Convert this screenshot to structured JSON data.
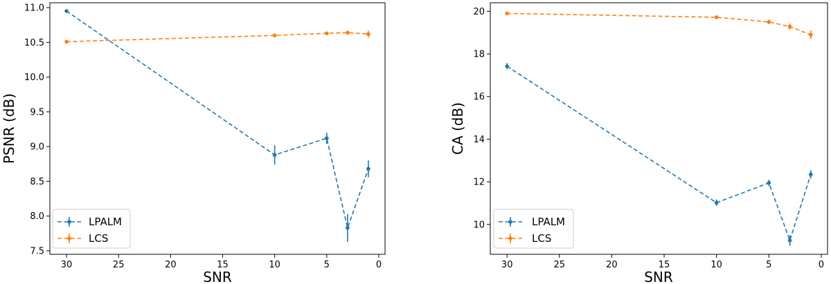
{
  "chart_data": [
    {
      "type": "line",
      "title": "",
      "xlabel": "SNR",
      "ylabel": "PSNR (dB)",
      "xlim": [
        31.6,
        -0.6
      ],
      "ylim": [
        7.45,
        11.07
      ],
      "xticks": [
        30,
        25,
        20,
        15,
        10,
        5,
        0
      ],
      "yticks": [
        7.5,
        8.0,
        8.5,
        9.0,
        9.5,
        10.0,
        10.5,
        11.0
      ],
      "ytick_labels": [
        "7.5",
        "8.0",
        "8.5",
        "9.0",
        "9.5",
        "10.0",
        "10.5",
        "11.0"
      ],
      "legend_position": "lower-left",
      "series": [
        {
          "name": "LPALM",
          "color": "#1f77b4",
          "x": [
            30,
            10,
            5,
            3,
            1
          ],
          "y": [
            10.95,
            8.88,
            9.12,
            7.83,
            8.68
          ],
          "err": [
            0.02,
            0.14,
            0.08,
            0.2,
            0.12
          ]
        },
        {
          "name": "LCS",
          "color": "#ff7f0e",
          "x": [
            30,
            10,
            5,
            3,
            1
          ],
          "y": [
            10.51,
            10.6,
            10.63,
            10.64,
            10.62
          ],
          "err": [
            0.01,
            0.01,
            0.01,
            0.03,
            0.05
          ]
        }
      ]
    },
    {
      "type": "line",
      "title": "",
      "xlabel": "SNR",
      "ylabel": "CA (dB)",
      "xlim": [
        31.6,
        -0.6
      ],
      "ylim": [
        8.6,
        20.4
      ],
      "xticks": [
        30,
        25,
        20,
        15,
        10,
        5,
        0
      ],
      "yticks": [
        10,
        12,
        14,
        16,
        18,
        20
      ],
      "ytick_labels": [
        "10",
        "12",
        "14",
        "16",
        "18",
        "20"
      ],
      "legend_position": "lower-left",
      "series": [
        {
          "name": "LPALM",
          "color": "#1f77b4",
          "x": [
            30,
            10,
            5,
            3,
            1
          ],
          "y": [
            17.42,
            11.02,
            11.95,
            9.25,
            12.35
          ],
          "err": [
            0.15,
            0.15,
            0.15,
            0.25,
            0.2
          ]
        },
        {
          "name": "LCS",
          "color": "#ff7f0e",
          "x": [
            30,
            10,
            5,
            3,
            1
          ],
          "y": [
            19.9,
            19.72,
            19.5,
            19.28,
            18.9
          ],
          "err": [
            0.03,
            0.05,
            0.1,
            0.15,
            0.2
          ]
        }
      ]
    }
  ]
}
